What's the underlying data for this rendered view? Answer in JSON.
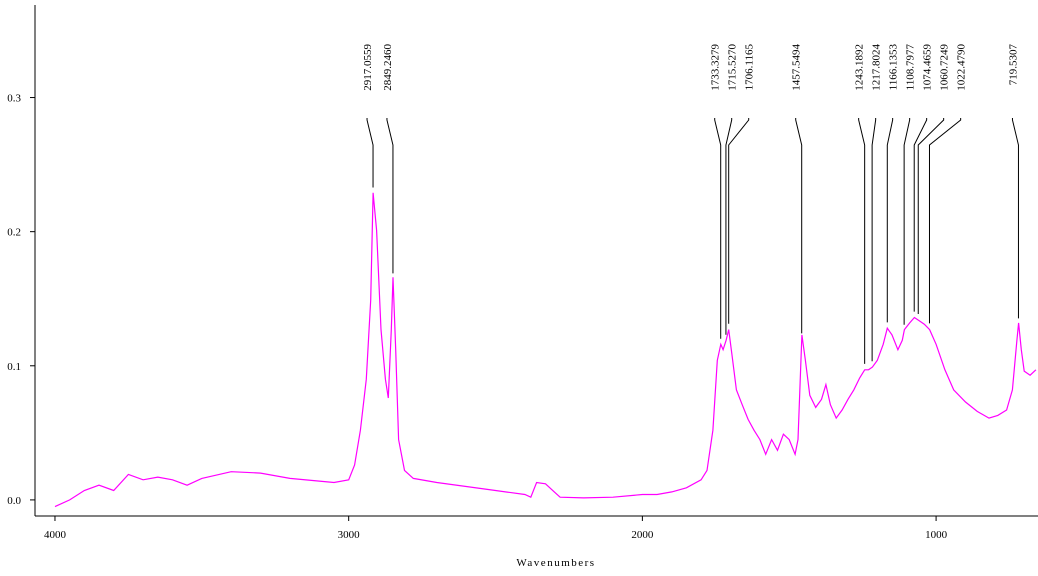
{
  "chart_data": {
    "type": "line",
    "x_label": "Wavenumbers",
    "color": "#ff00ff",
    "xlim": [
      4068,
      653
    ],
    "ylim": [
      -0.012,
      0.369
    ],
    "xticks": [
      4000,
      3000,
      2000,
      1000
    ],
    "yticks": [
      {
        "value": 0,
        "label": "0.0"
      },
      0.1,
      0.2,
      0.3
    ],
    "x": [
      4000,
      3950,
      3900,
      3850,
      3800,
      3750,
      3700,
      3650,
      3600,
      3550,
      3500,
      3400,
      3300,
      3200,
      3100,
      3050,
      3000,
      2980,
      2960,
      2940,
      2925,
      2917,
      2905,
      2890,
      2875,
      2865,
      2855,
      2849,
      2840,
      2830,
      2810,
      2780,
      2700,
      2600,
      2500,
      2400,
      2380,
      2360,
      2330,
      2300,
      2280,
      2200,
      2100,
      2000,
      1950,
      1900,
      1850,
      1800,
      1780,
      1760,
      1745,
      1733,
      1725,
      1715,
      1706,
      1695,
      1680,
      1660,
      1640,
      1620,
      1600,
      1580,
      1560,
      1540,
      1520,
      1500,
      1480,
      1470,
      1457,
      1445,
      1430,
      1410,
      1390,
      1375,
      1360,
      1340,
      1320,
      1300,
      1280,
      1260,
      1243,
      1230,
      1217,
      1200,
      1180,
      1166,
      1150,
      1130,
      1115,
      1108,
      1090,
      1074,
      1060,
      1040,
      1022,
      1000,
      970,
      940,
      900,
      860,
      820,
      790,
      760,
      740,
      725,
      719,
      710,
      700,
      680,
      660
    ],
    "values": [
      -0.005,
      0.0,
      0.007,
      0.011,
      0.007,
      0.019,
      0.015,
      0.017,
      0.015,
      0.011,
      0.016,
      0.021,
      0.02,
      0.016,
      0.014,
      0.013,
      0.015,
      0.026,
      0.052,
      0.09,
      0.149,
      0.229,
      0.201,
      0.127,
      0.09,
      0.076,
      0.127,
      0.166,
      0.112,
      0.045,
      0.022,
      0.016,
      0.013,
      0.01,
      0.007,
      0.004,
      0.002,
      0.013,
      0.012,
      0.006,
      0.002,
      0.0015,
      0.002,
      0.004,
      0.004,
      0.006,
      0.009,
      0.015,
      0.022,
      0.052,
      0.104,
      0.116,
      0.112,
      0.119,
      0.127,
      0.108,
      0.082,
      0.071,
      0.06,
      0.052,
      0.045,
      0.034,
      0.045,
      0.037,
      0.049,
      0.045,
      0.034,
      0.045,
      0.123,
      0.104,
      0.078,
      0.069,
      0.075,
      0.086,
      0.071,
      0.061,
      0.067,
      0.075,
      0.082,
      0.091,
      0.097,
      0.097,
      0.099,
      0.104,
      0.116,
      0.128,
      0.123,
      0.112,
      0.119,
      0.127,
      0.132,
      0.136,
      0.134,
      0.131,
      0.127,
      0.116,
      0.097,
      0.082,
      0.073,
      0.066,
      0.061,
      0.063,
      0.067,
      0.082,
      0.119,
      0.132,
      0.112,
      0.096,
      0.093,
      0.097
    ],
    "peaks": [
      {
        "value": 2917.0559,
        "label": "2917.0559"
      },
      {
        "value": 2849.246,
        "label": "2849.2460"
      },
      {
        "value": 1733.3279,
        "label": "1733.3279"
      },
      {
        "value": 1715.527,
        "label": "1715.5270"
      },
      {
        "value": 1706.1165,
        "label": "1706.1165"
      },
      {
        "value": 1457.5494,
        "label": "1457.5494"
      },
      {
        "value": 1243.1892,
        "label": "1243.1892"
      },
      {
        "value": 1217.8024,
        "label": "1217.8024"
      },
      {
        "value": 1166.1353,
        "label": "1166.1353"
      },
      {
        "value": 1108.7977,
        "label": "1108.7977"
      },
      {
        "value": 1074.4659,
        "label": "1074.4659"
      },
      {
        "value": 1060.7249,
        "label": "1060.7249"
      },
      {
        "value": 1022.479,
        "label": "1022.4790"
      },
      {
        "value": 719.5307,
        "label": "719.5307"
      }
    ]
  }
}
